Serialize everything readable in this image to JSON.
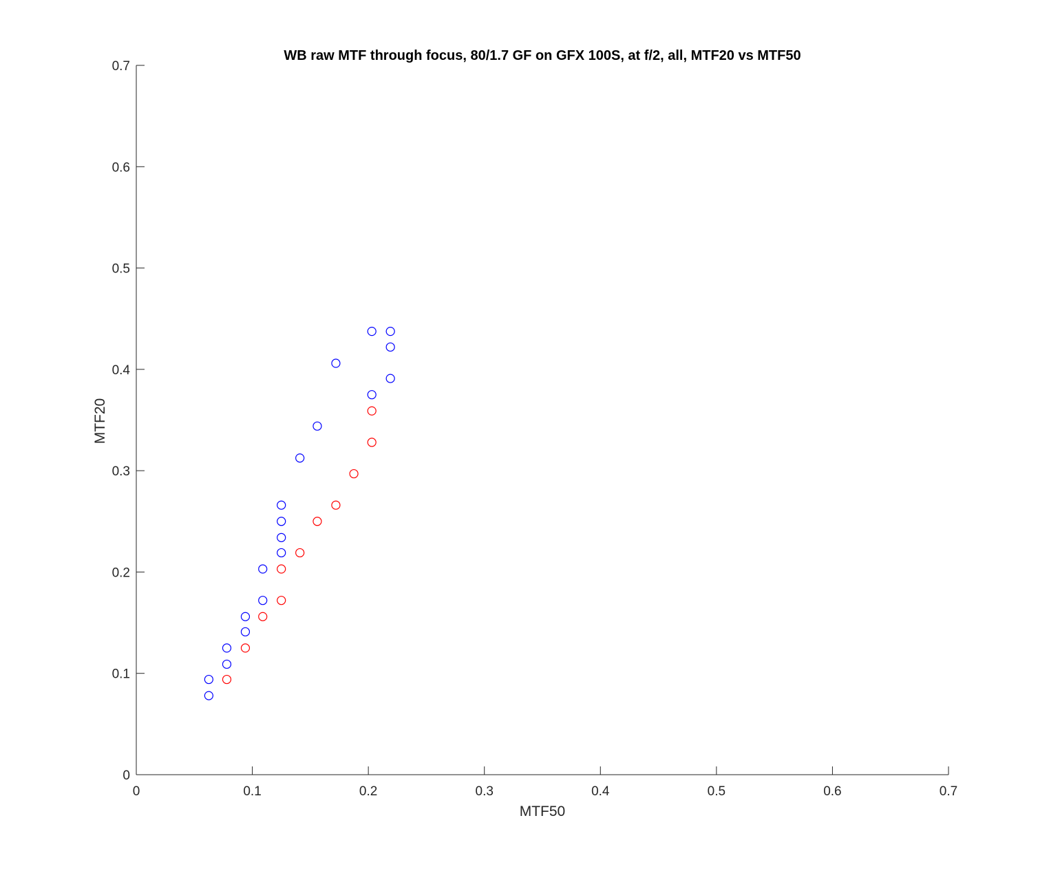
{
  "chart_data": {
    "type": "scatter",
    "title": "WB raw MTF through focus, 80/1.7 GF on GFX 100S, at f/2, all, MTF20 vs MTF50",
    "xlabel": "MTF50",
    "ylabel": "MTF20",
    "xlim": [
      0,
      0.7
    ],
    "ylim": [
      0,
      0.7
    ],
    "xticks": [
      0,
      0.1,
      0.2,
      0.3,
      0.4,
      0.5,
      0.6,
      0.7
    ],
    "yticks": [
      0,
      0.1,
      0.2,
      0.3,
      0.4,
      0.5,
      0.6,
      0.7
    ],
    "xtick_labels": [
      "0",
      "0.1",
      "0.2",
      "0.3",
      "0.4",
      "0.5",
      "0.6",
      "0.7"
    ],
    "ytick_labels": [
      "0",
      "0.1",
      "0.2",
      "0.3",
      "0.4",
      "0.5",
      "0.6",
      "0.7"
    ],
    "grid": false,
    "marker": "open-circle",
    "series": [
      {
        "color": "#0000ff",
        "points": [
          [
            0.0625,
            0.078
          ],
          [
            0.0625,
            0.094
          ],
          [
            0.078,
            0.109
          ],
          [
            0.078,
            0.125
          ],
          [
            0.094,
            0.141
          ],
          [
            0.094,
            0.156
          ],
          [
            0.109,
            0.172
          ],
          [
            0.109,
            0.203
          ],
          [
            0.125,
            0.219
          ],
          [
            0.125,
            0.234
          ],
          [
            0.125,
            0.25
          ],
          [
            0.125,
            0.266
          ],
          [
            0.141,
            0.3125
          ],
          [
            0.156,
            0.344
          ],
          [
            0.172,
            0.406
          ],
          [
            0.203,
            0.375
          ],
          [
            0.203,
            0.4375
          ],
          [
            0.219,
            0.391
          ],
          [
            0.219,
            0.422
          ],
          [
            0.219,
            0.4375
          ]
        ]
      },
      {
        "color": "#ff0000",
        "points": [
          [
            0.078,
            0.094
          ],
          [
            0.094,
            0.125
          ],
          [
            0.109,
            0.156
          ],
          [
            0.125,
            0.172
          ],
          [
            0.125,
            0.203
          ],
          [
            0.141,
            0.219
          ],
          [
            0.156,
            0.25
          ],
          [
            0.172,
            0.266
          ],
          [
            0.1875,
            0.297
          ],
          [
            0.203,
            0.328
          ],
          [
            0.203,
            0.359
          ]
        ]
      }
    ]
  }
}
